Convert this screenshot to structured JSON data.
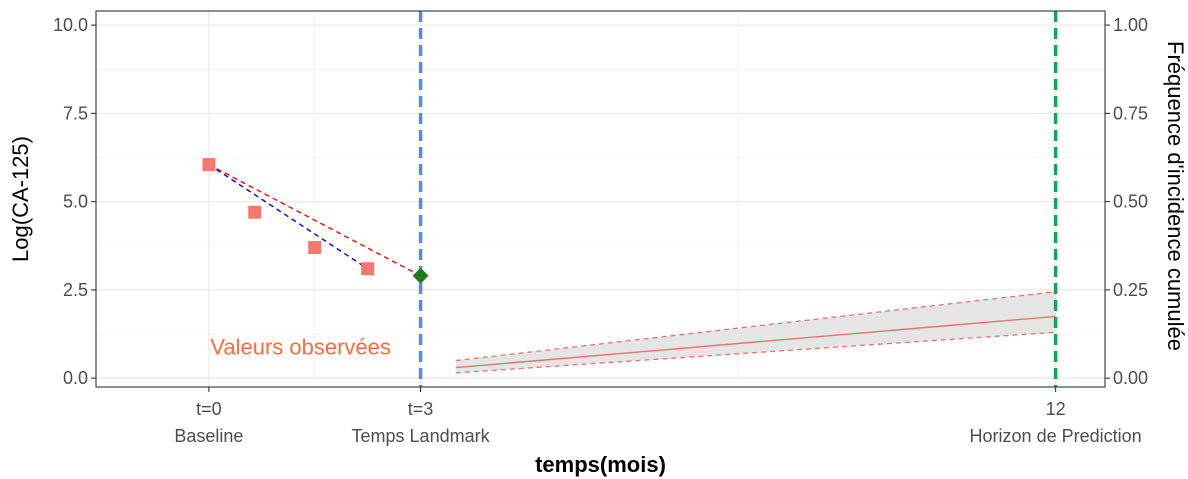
{
  "chart_data": {
    "type": "line",
    "title": "",
    "xlabel": "temps(mois)",
    "ylabel_left": "Log(CA-125)",
    "ylabel_right": "Fréquence d'incidence cumulée",
    "xlim": [
      -1.6,
      12.7
    ],
    "ylim_left": [
      -0.25,
      10.4
    ],
    "ylim_right": [
      -0.025,
      1.04
    ],
    "grid": true,
    "x_ticks": [
      {
        "value": 0,
        "label": "t=0",
        "sublabel": "Baseline"
      },
      {
        "value": 3,
        "label": "t=3",
        "sublabel": "Temps Landmark"
      },
      {
        "value": 12,
        "label": "12",
        "sublabel": "Horizon de Prediction"
      }
    ],
    "x_minor_grid": [
      1.5,
      7.5
    ],
    "y_ticks_left": [
      {
        "value": 0,
        "label": "0.0"
      },
      {
        "value": 2.5,
        "label": "2.5"
      },
      {
        "value": 5,
        "label": "5.0"
      },
      {
        "value": 7.5,
        "label": "7.5"
      },
      {
        "value": 10,
        "label": "10.0"
      }
    ],
    "y_ticks_right": [
      {
        "value": 0,
        "label": "0.00"
      },
      {
        "value": 0.25,
        "label": "0.25"
      },
      {
        "value": 0.5,
        "label": "0.50"
      },
      {
        "value": 0.75,
        "label": "0.75"
      },
      {
        "value": 1,
        "label": "1.00"
      }
    ],
    "observed_points": {
      "color": "#f8766d",
      "points": [
        {
          "x": 0,
          "y": 6.05
        },
        {
          "x": 0.65,
          "y": 4.7
        },
        {
          "x": 1.5,
          "y": 3.7
        },
        {
          "x": 2.25,
          "y": 3.1
        }
      ]
    },
    "landmark_point": {
      "x": 3,
      "y": 2.9,
      "color": "#1b7a1b"
    },
    "fit_lines": [
      {
        "color": "#0000ff",
        "dash": true,
        "points": [
          {
            "x": 0,
            "y": 6.05
          },
          {
            "x": 2.25,
            "y": 3.1
          }
        ]
      },
      {
        "color": "#ff0000",
        "dash": true,
        "points": [
          {
            "x": 0,
            "y": 6.05
          },
          {
            "x": 3,
            "y": 2.9
          }
        ]
      }
    ],
    "incidence": {
      "color": "#e8736a",
      "band_fill": "#e5e5e5",
      "x": [
        3.5,
        12
      ],
      "estimate": [
        0.03,
        0.175
      ],
      "lower": [
        0.015,
        0.13
      ],
      "upper": [
        0.05,
        0.245
      ]
    },
    "vlines": [
      {
        "x": 3,
        "color": "#5b8bd4"
      },
      {
        "x": 12,
        "color": "#00b050"
      }
    ],
    "annotation": {
      "text": "Valeurs observées",
      "x": 1.3,
      "y": 0.9,
      "color": "#ff6a3d"
    }
  }
}
